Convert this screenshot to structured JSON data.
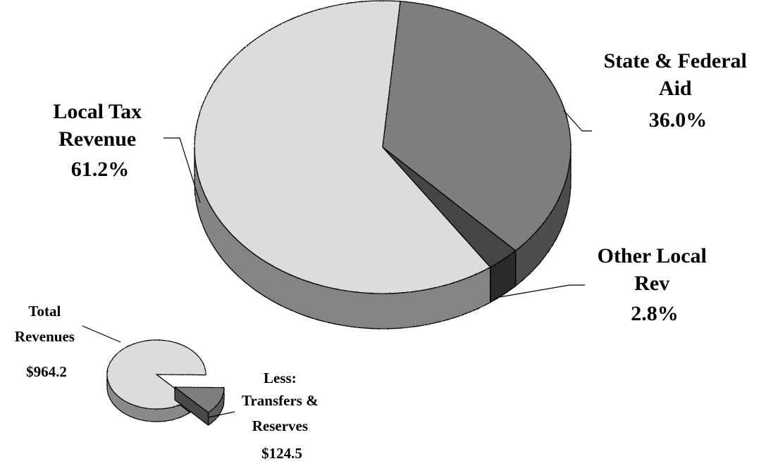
{
  "chart_data": [
    {
      "type": "pie",
      "style": "3d",
      "title": "",
      "series": [
        {
          "label_lines": [
            "Local Tax",
            "Revenue"
          ],
          "pct_label": "61.2%",
          "value": 61.2,
          "color": "#dcdcdc"
        },
        {
          "label_lines": [
            "Other Local",
            "Rev"
          ],
          "pct_label": "2.8%",
          "value": 2.8,
          "color": "#444444"
        },
        {
          "label_lines": [
            "State & Federal",
            "Aid"
          ],
          "pct_label": "36.0%",
          "value": 36.0,
          "color": "#7e7e7e"
        }
      ]
    },
    {
      "type": "pie",
      "style": "3d-exploded",
      "title": "",
      "series": [
        {
          "label_lines": [
            "Total",
            "Revenues"
          ],
          "amount_label": "$964.2",
          "value": 839.7,
          "color": "#dcdcdc"
        },
        {
          "label_lines": [
            "Less:",
            "Transfers &",
            "Reserves"
          ],
          "amount_label": "$124.5",
          "value": 124.5,
          "color": "#7e7e7e",
          "exploded": true
        }
      ]
    }
  ]
}
